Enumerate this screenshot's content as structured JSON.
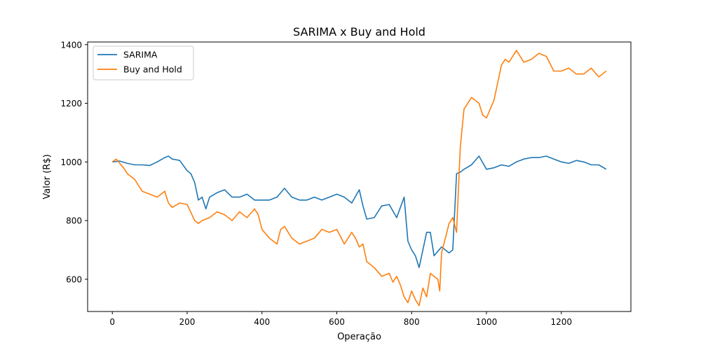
{
  "chart_data": {
    "type": "line",
    "title": "SARIMA x Buy and Hold",
    "xlabel": "Operação",
    "ylabel": "Valor (R$)",
    "xlim": [
      -66,
      1386
    ],
    "ylim": [
      490,
      1409
    ],
    "xticks": [
      0,
      200,
      400,
      600,
      800,
      1000,
      1200
    ],
    "xtick_labels": [
      "0",
      "200",
      "400",
      "600",
      "800",
      "1000",
      "1200"
    ],
    "yticks": [
      600,
      800,
      1000,
      1200,
      1400
    ],
    "ytick_labels": [
      "600",
      "800",
      "1000",
      "1200",
      "1400"
    ],
    "grid": false,
    "legend_position": "top-left",
    "series": [
      {
        "name": "SARIMA",
        "color": "#1f77b4",
        "x": [
          0,
          20,
          40,
          60,
          80,
          100,
          120,
          140,
          150,
          160,
          180,
          200,
          210,
          220,
          230,
          240,
          250,
          260,
          280,
          300,
          320,
          340,
          360,
          380,
          400,
          420,
          440,
          460,
          480,
          500,
          520,
          540,
          560,
          580,
          600,
          620,
          640,
          660,
          670,
          680,
          700,
          720,
          740,
          760,
          780,
          790,
          800,
          810,
          820,
          840,
          850,
          860,
          880,
          900,
          910,
          920,
          930,
          940,
          960,
          980,
          1000,
          1020,
          1040,
          1060,
          1080,
          1100,
          1120,
          1140,
          1160,
          1180,
          1200,
          1220,
          1240,
          1260,
          1280,
          1300,
          1320
        ],
        "y": [
          1000,
          1003,
          995,
          990,
          990,
          988,
          1000,
          1015,
          1020,
          1010,
          1005,
          970,
          960,
          930,
          870,
          880,
          840,
          880,
          895,
          905,
          880,
          880,
          890,
          870,
          870,
          870,
          880,
          910,
          880,
          870,
          870,
          880,
          870,
          880,
          890,
          880,
          860,
          905,
          850,
          805,
          810,
          850,
          855,
          810,
          880,
          730,
          700,
          680,
          640,
          760,
          760,
          680,
          710,
          690,
          700,
          960,
          965,
          975,
          990,
          1020,
          975,
          980,
          990,
          985,
          1000,
          1010,
          1015,
          1015,
          1020,
          1010,
          1000,
          995,
          1005,
          1000,
          990,
          990,
          975
        ]
      },
      {
        "name": "Buy and Hold",
        "color": "#ff7f0e",
        "x": [
          0,
          10,
          20,
          30,
          40,
          60,
          80,
          100,
          120,
          140,
          150,
          160,
          180,
          200,
          220,
          230,
          240,
          260,
          280,
          300,
          320,
          340,
          360,
          380,
          390,
          400,
          420,
          440,
          450,
          460,
          480,
          500,
          520,
          540,
          560,
          580,
          600,
          620,
          640,
          650,
          660,
          670,
          680,
          700,
          720,
          740,
          750,
          760,
          770,
          780,
          790,
          800,
          810,
          820,
          830,
          840,
          850,
          860,
          870,
          875,
          880,
          890,
          900,
          910,
          920,
          930,
          940,
          960,
          970,
          980,
          990,
          1000,
          1010,
          1020,
          1030,
          1040,
          1050,
          1060,
          1080,
          1100,
          1120,
          1140,
          1160,
          1180,
          1200,
          1220,
          1240,
          1260,
          1280,
          1300,
          1320
        ],
        "y": [
          1000,
          1010,
          995,
          980,
          960,
          940,
          900,
          890,
          880,
          900,
          860,
          845,
          860,
          855,
          800,
          790,
          800,
          810,
          830,
          820,
          800,
          830,
          810,
          840,
          820,
          770,
          740,
          720,
          770,
          780,
          740,
          720,
          730,
          740,
          770,
          760,
          770,
          720,
          760,
          740,
          710,
          720,
          660,
          640,
          610,
          620,
          590,
          610,
          580,
          540,
          520,
          560,
          530,
          510,
          570,
          540,
          620,
          610,
          600,
          560,
          690,
          740,
          790,
          810,
          760,
          1050,
          1180,
          1220,
          1210,
          1200,
          1160,
          1150,
          1180,
          1210,
          1270,
          1330,
          1350,
          1340,
          1380,
          1340,
          1350,
          1370,
          1360,
          1310,
          1310,
          1320,
          1300,
          1300,
          1320,
          1290,
          1310
        ]
      }
    ]
  }
}
